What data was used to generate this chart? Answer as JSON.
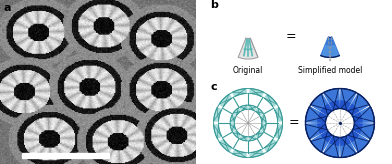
{
  "label_a": "a",
  "label_b": "b",
  "label_c": "c",
  "original_label": "Original",
  "simplified_label": "Simplified model",
  "equals_sign": "=",
  "n_spokes": 12,
  "teal_color": "#7DCBC7",
  "teal_fill": "#A8DCDA",
  "teal_dark": "#3A9A96",
  "teal_line": "#5BBAB6",
  "blue_fill": "#2255CC",
  "blue_mid": "#3A7AD4",
  "blue_light": "#5B9FE8",
  "blue_dark": "#0A2060",
  "white": "#FFFFFF",
  "black": "#000000",
  "gray_light": "#E0E0E0",
  "gray_mid": "#999999",
  "font_size_label": 7,
  "font_size_small": 5.5
}
